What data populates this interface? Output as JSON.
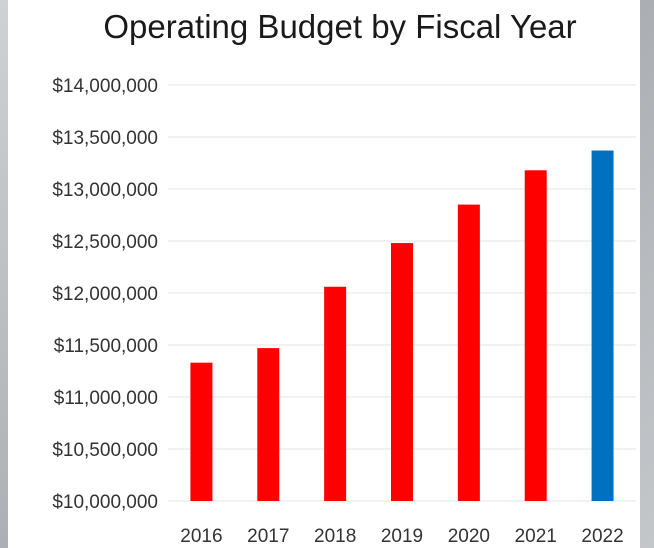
{
  "chart_data": {
    "type": "bar",
    "title": "Operating Budget by Fiscal Year",
    "xlabel": "",
    "ylabel": "",
    "categories": [
      "2016",
      "2017",
      "2018",
      "2019",
      "2020",
      "2021",
      "2022"
    ],
    "values": [
      11330000,
      11470000,
      12060000,
      12480000,
      12850000,
      13180000,
      13370000
    ],
    "bar_colors": [
      "#ff0000",
      "#ff0000",
      "#ff0000",
      "#ff0000",
      "#ff0000",
      "#ff0000",
      "#0070c0"
    ],
    "ylim": [
      10000000,
      14000000
    ],
    "yticks": [
      10000000,
      10500000,
      11000000,
      11500000,
      12000000,
      12500000,
      13000000,
      13500000,
      14000000
    ],
    "ytick_labels": [
      "$10,000,000",
      "$10,500,000",
      "$11,000,000",
      "$11,500,000",
      "$12,000,000",
      "$12,500,000",
      "$13,000,000",
      "$13,500,000",
      "$14,000,000"
    ],
    "grid": true,
    "legend": "none"
  }
}
